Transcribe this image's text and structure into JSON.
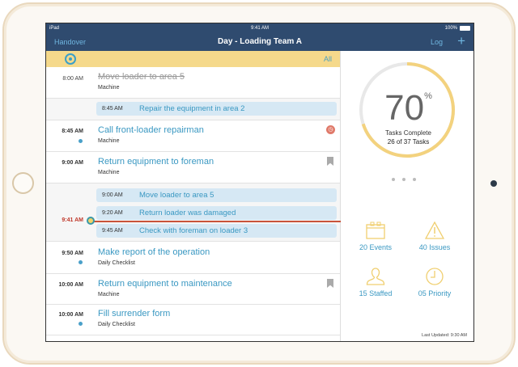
{
  "status_bar": {
    "device": "iPad",
    "time": "9:41 AM",
    "battery": "100%"
  },
  "nav": {
    "left": "Handover",
    "title": "Day - Loading Team A",
    "log": "Log",
    "add": "+"
  },
  "filter": {
    "all": "All"
  },
  "rows": [
    {
      "time": "8:00 AM",
      "title": "Move loader to area 5",
      "subtitle": "Machine",
      "done": true
    },
    {
      "time": "8:45 AM",
      "title": "Repair the equipment in area 2"
    },
    {
      "time": "8:45 AM",
      "title": "Call front-loader repairman",
      "subtitle": "Machine"
    },
    {
      "time": "9:00 AM",
      "title": "Return equipment to foreman",
      "subtitle": "Machine"
    },
    {
      "time": "9:00 AM",
      "title": "Move loader to area 5"
    },
    {
      "time": "9:20 AM",
      "title": "Return loader was damaged"
    },
    {
      "time": "9:45 AM",
      "title": "Check with foreman on loader 3"
    },
    {
      "time": "9:50 AM",
      "title": "Make report of the operation",
      "subtitle": "Daily Checklist"
    },
    {
      "time": "10:00 AM",
      "title": "Return equipment to maintenance",
      "subtitle": "Machine"
    },
    {
      "time": "10:00 AM",
      "title": "Fill surrender form",
      "subtitle": "Daily Checklist"
    }
  ],
  "now": {
    "time": "9:41 AM",
    "color": "#c9533a"
  },
  "summary": {
    "percent": "70",
    "percent_sign": "%",
    "progress": 0.7,
    "label": "Tasks Complete",
    "count": "26 of 37 Tasks",
    "stats": [
      {
        "icon": "calendar-icon",
        "label": "20 Events"
      },
      {
        "icon": "warning-icon",
        "label": "40 Issues"
      },
      {
        "icon": "person-icon",
        "label": "15 Staffed"
      },
      {
        "icon": "clock-icon",
        "label": "05 Priority"
      }
    ],
    "last_updated": "Last Updated: 9:30 AM"
  },
  "colors": {
    "nav": "#2f4b6f",
    "accent": "#3a98c2",
    "highlight": "#f5d98b"
  }
}
